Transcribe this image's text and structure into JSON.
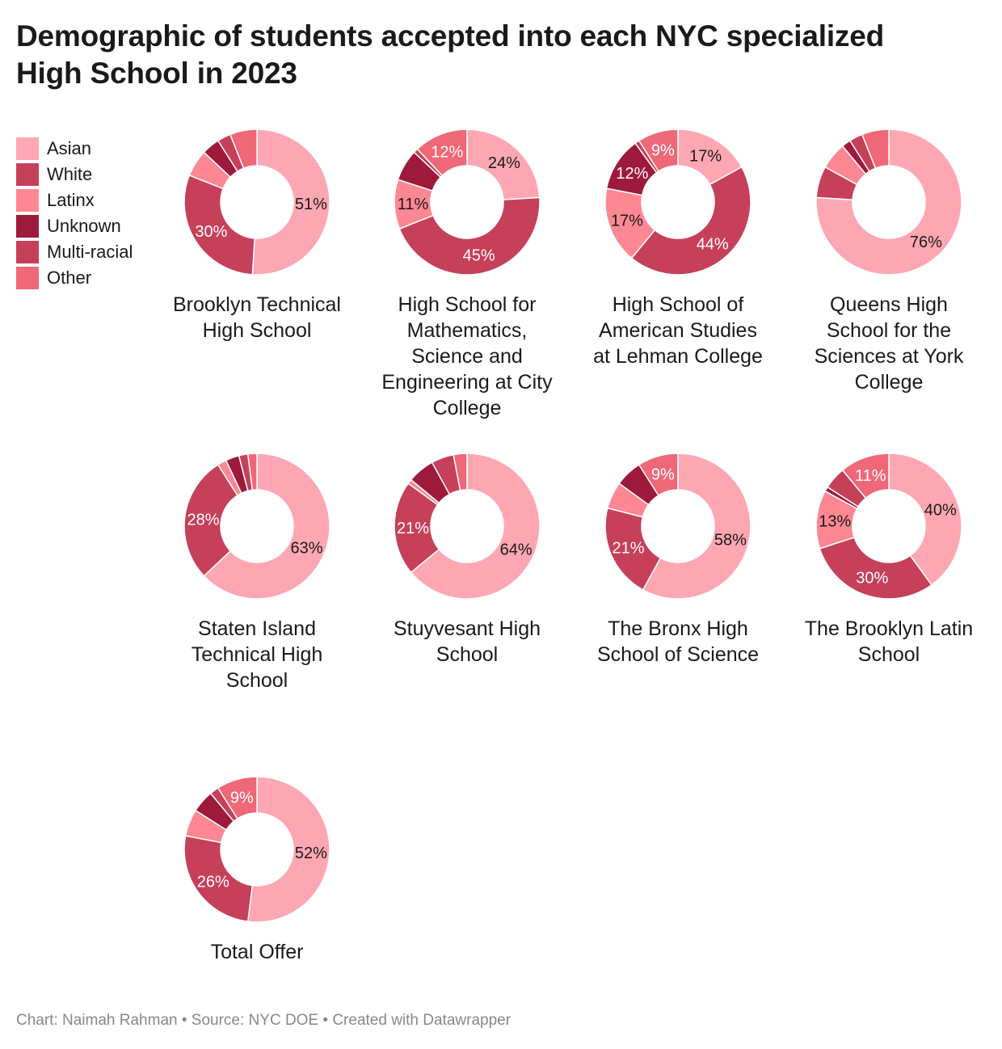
{
  "title": "Demographic of students accepted into each NYC specialized High School in 2023",
  "footer": "Chart: Naimah Rahman • Source: NYC DOE • Created with Datawrapper",
  "legend": [
    {
      "name": "Asian",
      "color": "#fda7b3"
    },
    {
      "name": "White",
      "color": "#c6405a"
    },
    {
      "name": "Latinx",
      "color": "#fd8893"
    },
    {
      "name": "Unknown",
      "color": "#9d1a3c"
    },
    {
      "name": "Multi-racial",
      "color": "#c6405a"
    },
    {
      "name": "Other",
      "color": "#ef6877"
    }
  ],
  "chart_data": {
    "type": "pie",
    "series_order": [
      "Asian",
      "White",
      "Latinx",
      "Unknown",
      "Multi-racial",
      "Other"
    ],
    "charts": [
      {
        "name": "Brooklyn Technical High School",
        "values": [
          51,
          30,
          6,
          4,
          3,
          6
        ]
      },
      {
        "name": "High School for Mathematics, Science and Engineering at City College",
        "values": [
          24,
          45,
          11,
          7,
          1,
          12
        ]
      },
      {
        "name": "High School of American Studies at Lehman College",
        "values": [
          17,
          44,
          17,
          12,
          1,
          9
        ]
      },
      {
        "name": "Queens High School for the Sciences at York College",
        "values": [
          76,
          7,
          6,
          2,
          3,
          6
        ]
      },
      {
        "name": "Staten Island Technical High School",
        "values": [
          63,
          28,
          2,
          3,
          2,
          2
        ]
      },
      {
        "name": "Stuyvesant High School",
        "values": [
          64,
          21,
          1,
          6,
          5,
          3
        ]
      },
      {
        "name": "The Bronx High School of Science",
        "values": [
          58,
          21,
          6,
          6,
          0,
          9
        ]
      },
      {
        "name": "The Brooklyn Latin School",
        "values": [
          40,
          30,
          13,
          1,
          5,
          11
        ]
      },
      {
        "name": "Total Offer",
        "values": [
          52,
          26,
          6,
          5,
          2,
          9
        ]
      }
    ]
  }
}
